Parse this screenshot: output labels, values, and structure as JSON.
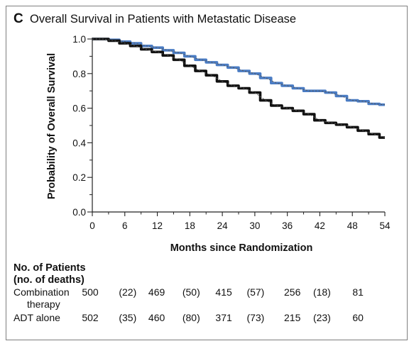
{
  "figure": {
    "panel_letter": "C",
    "title": "Overall Survival in Patients with Metastatic Disease"
  },
  "colors": {
    "combination": "#4a7cc4",
    "adt": "#111111",
    "fit_line": "#555555",
    "axis": "#222222"
  },
  "chart_data": {
    "type": "line",
    "title": "Overall Survival in Patients with Metastatic Disease",
    "xlabel": "Months since Randomization",
    "ylabel": "Probability of Overall Survival",
    "xlim": [
      0,
      54
    ],
    "ylim": [
      0.0,
      1.0
    ],
    "xticks": [
      "0",
      "6",
      "12",
      "18",
      "24",
      "30",
      "36",
      "42",
      "48",
      "54"
    ],
    "xtick_values": [
      0,
      6,
      12,
      18,
      24,
      30,
      36,
      42,
      48,
      54
    ],
    "yticks": [
      "0.0",
      "0.2",
      "0.4",
      "0.6",
      "0.8",
      "1.0"
    ],
    "ytick_values": [
      0.0,
      0.2,
      0.4,
      0.6,
      0.8,
      1.0
    ],
    "grid": false,
    "series": [
      {
        "key": "combination",
        "x": [
          0,
          2,
          4,
          6,
          8,
          10,
          12,
          14,
          16,
          18,
          20,
          22,
          24,
          26,
          28,
          30,
          32,
          34,
          36,
          38,
          40,
          42,
          44,
          46,
          48,
          50,
          52,
          54
        ],
        "y": [
          1.0,
          1.0,
          0.995,
          0.985,
          0.975,
          0.96,
          0.95,
          0.935,
          0.92,
          0.9,
          0.88,
          0.865,
          0.85,
          0.835,
          0.815,
          0.8,
          0.775,
          0.745,
          0.73,
          0.715,
          0.7,
          0.7,
          0.69,
          0.67,
          0.645,
          0.64,
          0.625,
          0.62
        ]
      },
      {
        "key": "adt",
        "x": [
          0,
          2,
          4,
          6,
          8,
          10,
          12,
          14,
          16,
          18,
          20,
          22,
          24,
          26,
          28,
          30,
          32,
          34,
          36,
          38,
          40,
          42,
          44,
          46,
          48,
          50,
          52,
          54
        ],
        "y": [
          1.0,
          1.0,
          0.99,
          0.975,
          0.96,
          0.94,
          0.925,
          0.905,
          0.88,
          0.845,
          0.815,
          0.79,
          0.755,
          0.73,
          0.715,
          0.69,
          0.645,
          0.615,
          0.6,
          0.585,
          0.565,
          0.53,
          0.515,
          0.505,
          0.49,
          0.47,
          0.45,
          0.43
        ]
      }
    ]
  },
  "risk_table": {
    "heading_line1": "No. of Patients",
    "heading_line2": "(no. of deaths)",
    "rows": [
      {
        "label_line1": "Combination",
        "label_line2": "therapy",
        "cells": [
          "500",
          "(22)",
          "469",
          "(50)",
          "415",
          "(57)",
          "256",
          "(18)",
          "81"
        ]
      },
      {
        "label_line1": "ADT alone",
        "label_line2": "",
        "cells": [
          "502",
          "(35)",
          "460",
          "(80)",
          "371",
          "(73)",
          "215",
          "(23)",
          "60"
        ]
      }
    ]
  }
}
